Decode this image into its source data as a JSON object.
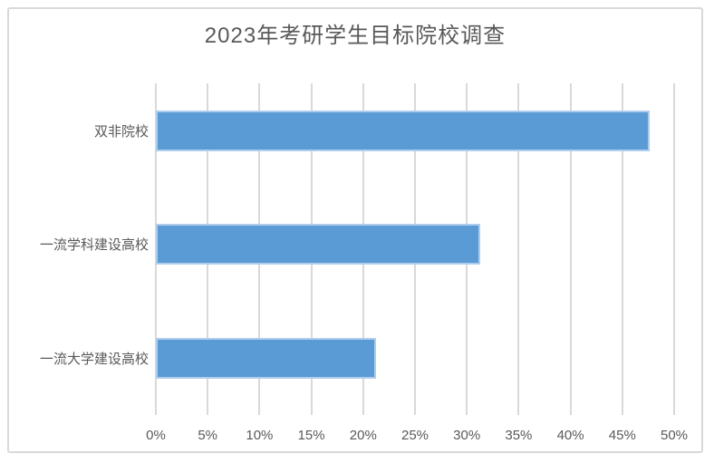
{
  "chart_data": {
    "type": "bar",
    "orientation": "horizontal",
    "title": "2023年考研学生目标院校调查",
    "categories": [
      "双非院校",
      "一流学科建设高校",
      "一流大学建设高校"
    ],
    "values": [
      47.6,
      31.3,
      21.2
    ],
    "value_unit": "%",
    "x_ticks": [
      "0%",
      "5%",
      "10%",
      "15%",
      "20%",
      "25%",
      "30%",
      "35%",
      "40%",
      "45%",
      "50%"
    ],
    "xlim": [
      0,
      50
    ],
    "xlabel": "",
    "ylabel": "",
    "grid": "vertical-on",
    "legend": "none",
    "colors": {
      "bar_fill": "#5b9bd5",
      "bar_border": "#aecdec",
      "gridline": "#d9d9d9",
      "frame_border": "#d9d9d9",
      "text": "#595959",
      "background": "#ffffff"
    }
  }
}
